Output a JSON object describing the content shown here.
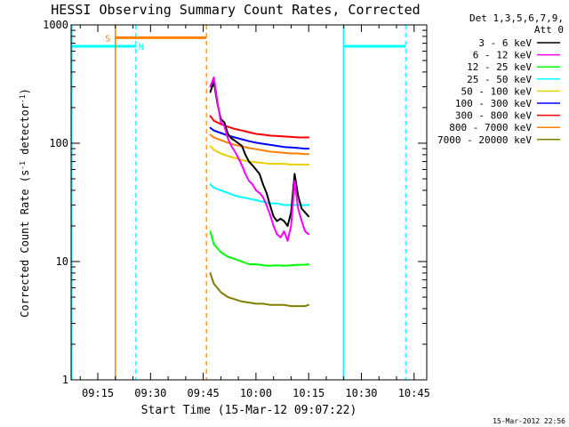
{
  "chart_data": {
    "type": "line",
    "title": "HESSI Observing Summary Count Rates, Corrected",
    "xlabel": "Start Time (15-Mar-12 09:07:22)",
    "ylabel_main": "Corrected Count Rate (s",
    "ylabel_sup1": "-1",
    "ylabel_mid": " detector",
    "ylabel_sup2": "-1",
    "ylabel_end": ")",
    "yscale": "log",
    "ylim": [
      1,
      1000
    ],
    "xlim_minutes": [
      547.4,
      648.6
    ],
    "x_ticks": [
      {
        "label": "09:15",
        "minutes": 555
      },
      {
        "label": "09:30",
        "minutes": 570
      },
      {
        "label": "09:45",
        "minutes": 585
      },
      {
        "label": "10:00",
        "minutes": 600
      },
      {
        "label": "10:15",
        "minutes": 615
      },
      {
        "label": "10:30",
        "minutes": 630
      },
      {
        "label": "10:45",
        "minutes": 645
      }
    ],
    "y_ticks": [
      {
        "label": "1",
        "value": 1
      },
      {
        "label": "10",
        "value": 10
      },
      {
        "label": "100",
        "value": 100
      },
      {
        "label": "1000",
        "value": 1000
      }
    ],
    "legend_header": [
      "Det 1,3,5,6,7,9,",
      "Att 0"
    ],
    "legend_position": "right",
    "series": [
      {
        "name": "3 - 6 keV",
        "color": "#000000",
        "x": [
          587,
          588,
          589,
          590,
          591,
          592,
          593,
          594,
          595,
          596,
          597,
          598,
          599,
          600,
          601,
          602,
          603,
          604,
          605,
          606,
          607,
          608,
          609,
          610,
          611,
          612,
          613,
          614,
          615
        ],
        "y": [
          270,
          330,
          220,
          160,
          150,
          120,
          110,
          105,
          100,
          95,
          80,
          70,
          65,
          60,
          55,
          45,
          38,
          30,
          24,
          22,
          23,
          22,
          20,
          26,
          55,
          36,
          28,
          26,
          24
        ]
      },
      {
        "name": "6 - 12 keV",
        "color": "#ff00ff",
        "x": [
          587,
          588,
          589,
          590,
          591,
          592,
          593,
          594,
          595,
          596,
          597,
          598,
          599,
          600,
          601,
          602,
          603,
          604,
          605,
          606,
          607,
          608,
          609,
          610,
          611,
          612,
          613,
          614,
          615
        ],
        "y": [
          300,
          360,
          230,
          150,
          140,
          110,
          95,
          85,
          75,
          65,
          55,
          48,
          45,
          40,
          38,
          35,
          30,
          25,
          20,
          17,
          16,
          18,
          15,
          20,
          48,
          28,
          22,
          18,
          17
        ]
      },
      {
        "name": "12 - 25 keV",
        "color": "#00ff00",
        "x": [
          587,
          588,
          590,
          592,
          594,
          596,
          598,
          600,
          602,
          604,
          606,
          608,
          610,
          612,
          614,
          615
        ],
        "y": [
          18,
          14,
          12,
          11,
          10.5,
          10,
          9.5,
          9.5,
          9.3,
          9.2,
          9.3,
          9.2,
          9.3,
          9.4,
          9.4,
          9.5
        ]
      },
      {
        "name": "25 - 50 keV",
        "color": "#00ffff",
        "x": [
          587,
          588,
          590,
          592,
          594,
          596,
          598,
          600,
          602,
          604,
          606,
          608,
          610,
          612,
          614,
          615
        ],
        "y": [
          45,
          42,
          40,
          38,
          36,
          35,
          34,
          33,
          32,
          31,
          31,
          30,
          30,
          30,
          30,
          30
        ]
      },
      {
        "name": "50 - 100 keV",
        "color": "#e6d000",
        "x": [
          587,
          588,
          590,
          592,
          594,
          596,
          598,
          600,
          602,
          604,
          606,
          608,
          610,
          612,
          614,
          615
        ],
        "y": [
          95,
          88,
          82,
          78,
          75,
          72,
          70,
          69,
          68,
          67,
          67,
          67,
          66,
          66,
          66,
          66
        ]
      },
      {
        "name": "100 - 300 keV",
        "color": "#0000ff",
        "x": [
          587,
          588,
          590,
          592,
          594,
          596,
          598,
          600,
          602,
          604,
          606,
          608,
          610,
          612,
          614,
          615
        ],
        "y": [
          135,
          128,
          122,
          116,
          112,
          108,
          104,
          101,
          99,
          97,
          95,
          93,
          92,
          91,
          90,
          90
        ]
      },
      {
        "name": "300 - 800 keV",
        "color": "#ff0000",
        "x": [
          587,
          588,
          590,
          592,
          594,
          596,
          598,
          600,
          602,
          604,
          606,
          608,
          610,
          612,
          614,
          615
        ],
        "y": [
          170,
          155,
          145,
          138,
          132,
          128,
          124,
          120,
          118,
          116,
          115,
          114,
          113,
          112,
          112,
          112
        ]
      },
      {
        "name": "800 - 7000 keV",
        "color": "#ff8000",
        "x": [
          587,
          588,
          590,
          592,
          594,
          596,
          598,
          600,
          602,
          604,
          606,
          608,
          610,
          612,
          614,
          615
        ],
        "y": [
          118,
          112,
          106,
          101,
          97,
          94,
          91,
          89,
          87,
          85,
          84,
          83,
          82,
          82,
          81,
          81
        ]
      },
      {
        "name": "7000 - 20000 keV",
        "color": "#808000",
        "x": [
          587,
          588,
          590,
          592,
          594,
          596,
          598,
          600,
          602,
          604,
          606,
          608,
          610,
          612,
          614,
          615
        ],
        "y": [
          8,
          6.5,
          5.5,
          5,
          4.8,
          4.6,
          4.5,
          4.4,
          4.4,
          4.3,
          4.3,
          4.3,
          4.2,
          4.2,
          4.2,
          4.3
        ]
      }
    ],
    "annotations": [
      {
        "text": "S",
        "color": "#ff8000"
      },
      {
        "text": "N",
        "color": "#00ffff"
      }
    ],
    "timestamp": "15-Mar-2012 22:56"
  }
}
